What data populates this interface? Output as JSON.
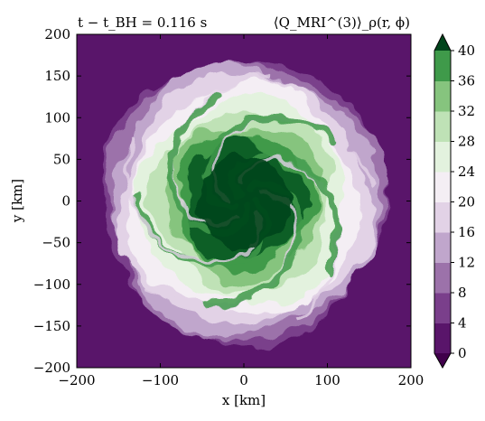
{
  "chart_data": {
    "type": "heatmap",
    "title_left": "t − t_BH = 0.116 s",
    "title_right": "⟨Q_MRI^(3)⟩_ρ(r, ϕ)",
    "xlabel": "x [km]",
    "ylabel": "y [km]",
    "xlim": [
      -200,
      200
    ],
    "ylim": [
      -200,
      200
    ],
    "x_ticks": [
      "−200",
      "−100",
      "0",
      "100",
      "200"
    ],
    "y_ticks": [
      "200",
      "150",
      "100",
      "50",
      "0",
      "−50",
      "−100",
      "−150",
      "−200"
    ],
    "x_tick_values": [
      -200,
      -100,
      0,
      100,
      200
    ],
    "y_tick_values": [
      200,
      150,
      100,
      50,
      0,
      -50,
      -100,
      -150,
      -200
    ],
    "colorbar": {
      "ticks": [
        "0",
        "4",
        "8",
        "12",
        "16",
        "20",
        "24",
        "28",
        "32",
        "36",
        "40"
      ],
      "levels": [
        0,
        4,
        8,
        12,
        16,
        20,
        24,
        28,
        32,
        36,
        40
      ],
      "extend": "both",
      "colors": [
        "#59156a",
        "#7a3f8b",
        "#9c72aa",
        "#c0a6cc",
        "#e2d2e6",
        "#f4eef4",
        "#e3f2de",
        "#bfe2b6",
        "#86c47e",
        "#3f9a4a",
        "#0e5e26"
      ],
      "over_color": "#00441b",
      "under_color": "#40004b"
    },
    "field_description": "spiral disk centered at origin, radius about 165 km; high values near center decreasing outward"
  }
}
